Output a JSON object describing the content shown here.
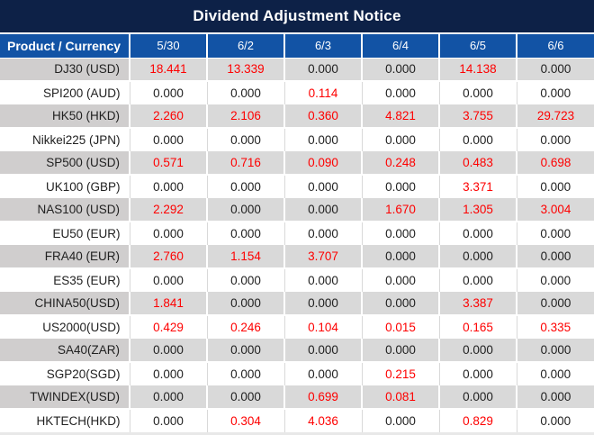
{
  "title": "Dividend Adjustment Notice",
  "chart_data": {
    "type": "table",
    "title": "Dividend Adjustment Notice",
    "columns": [
      "Product / Currency",
      "5/30",
      "6/2",
      "6/3",
      "6/4",
      "6/5",
      "6/6"
    ],
    "rows": [
      {
        "product": "DJ30 (USD)",
        "values": [
          "18.441",
          "13.339",
          "0.000",
          "0.000",
          "14.138",
          "0.000"
        ]
      },
      {
        "product": "SPI200 (AUD)",
        "values": [
          "0.000",
          "0.000",
          "0.114",
          "0.000",
          "0.000",
          "0.000"
        ]
      },
      {
        "product": "HK50 (HKD)",
        "values": [
          "2.260",
          "2.106",
          "0.360",
          "4.821",
          "3.755",
          "29.723"
        ]
      },
      {
        "product": "Nikkei225 (JPN)",
        "values": [
          "0.000",
          "0.000",
          "0.000",
          "0.000",
          "0.000",
          "0.000"
        ]
      },
      {
        "product": "SP500 (USD)",
        "values": [
          "0.571",
          "0.716",
          "0.090",
          "0.248",
          "0.483",
          "0.698"
        ]
      },
      {
        "product": "UK100 (GBP)",
        "values": [
          "0.000",
          "0.000",
          "0.000",
          "0.000",
          "3.371",
          "0.000"
        ]
      },
      {
        "product": "NAS100 (USD)",
        "values": [
          "2.292",
          "0.000",
          "0.000",
          "1.670",
          "1.305",
          "3.004"
        ]
      },
      {
        "product": "EU50 (EUR)",
        "values": [
          "0.000",
          "0.000",
          "0.000",
          "0.000",
          "0.000",
          "0.000"
        ]
      },
      {
        "product": "FRA40 (EUR)",
        "values": [
          "2.760",
          "1.154",
          "3.707",
          "0.000",
          "0.000",
          "0.000"
        ]
      },
      {
        "product": "ES35 (EUR)",
        "values": [
          "0.000",
          "0.000",
          "0.000",
          "0.000",
          "0.000",
          "0.000"
        ]
      },
      {
        "product": "CHINA50(USD)",
        "values": [
          "1.841",
          "0.000",
          "0.000",
          "0.000",
          "3.387",
          "0.000"
        ]
      },
      {
        "product": "US2000(USD)",
        "values": [
          "0.429",
          "0.246",
          "0.104",
          "0.015",
          "0.165",
          "0.335"
        ]
      },
      {
        "product": "SA40(ZAR)",
        "values": [
          "0.000",
          "0.000",
          "0.000",
          "0.000",
          "0.000",
          "0.000"
        ]
      },
      {
        "product": "SGP20(SGD)",
        "values": [
          "0.000",
          "0.000",
          "0.000",
          "0.215",
          "0.000",
          "0.000"
        ]
      },
      {
        "product": "TWINDEX(USD)",
        "values": [
          "0.000",
          "0.000",
          "0.699",
          "0.081",
          "0.000",
          "0.000"
        ]
      },
      {
        "product": "HKTECH(HKD)",
        "values": [
          "0.000",
          "0.304",
          "4.036",
          "0.000",
          "0.829",
          "0.000"
        ]
      }
    ]
  },
  "colors": {
    "title_bar_navy": "#0d2147",
    "header_blue": "#1253a5",
    "stripe_row_gray": "#d9d9d9",
    "stripe_product_gray": "#d0cece",
    "nonzero_value_red": "#fe0000",
    "zero_value_black": "#212121",
    "header_text_white": "#ffffff"
  }
}
